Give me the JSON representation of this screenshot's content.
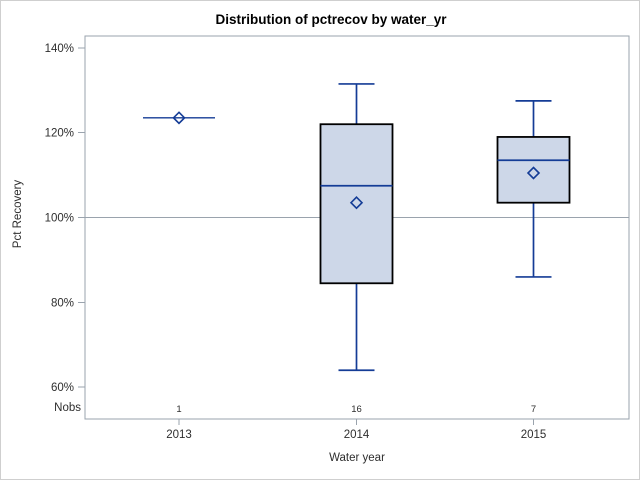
{
  "chart_data": {
    "type": "box",
    "title": "Distribution of pctrecov by water_yr",
    "xlabel": "Water year",
    "ylabel": "Pct Recovery",
    "nobs_label": "Nobs",
    "y_ticks": [
      140,
      120,
      100,
      80,
      60
    ],
    "y_tick_suffix": "%",
    "ylim": [
      52.5,
      142.8
    ],
    "reference_line": 100,
    "grid": "off",
    "legend": "none",
    "categories": [
      "2013",
      "2014",
      "2015"
    ],
    "series": [
      {
        "category": "2013",
        "nobs": "1",
        "min": 123.5,
        "q1": 123.5,
        "median": 123.5,
        "q3": 123.5,
        "max": 123.5,
        "mean": 123.5
      },
      {
        "category": "2014",
        "nobs": "16",
        "min": 64,
        "q1": 84.5,
        "median": 107.5,
        "q3": 122,
        "max": 131.5,
        "mean": 103.5
      },
      {
        "category": "2015",
        "nobs": "7",
        "min": 86,
        "q1": 103.5,
        "median": 113.5,
        "q3": 119,
        "max": 127.5,
        "mean": 110.5
      }
    ],
    "colors": {
      "box_fill": "#cdd7e8",
      "box_border": "#000000",
      "whisker": "#143c96",
      "median": "#143c96",
      "mean_marker": "#143c96",
      "reference_line": "#9aa3ad",
      "frame": "#9aa3ad",
      "text": "#2e2e2e",
      "title": "#000000",
      "figure_border": "#cfcfcf"
    }
  }
}
